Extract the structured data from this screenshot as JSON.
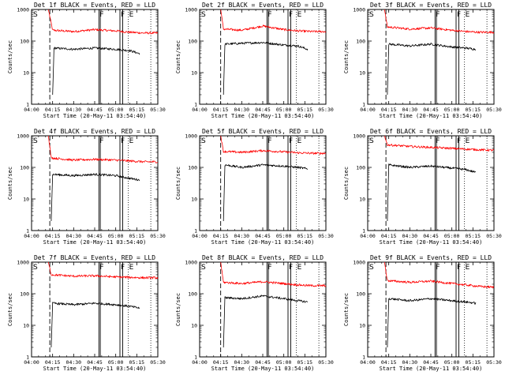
{
  "figure": {
    "xlabel": "Start Time (20-May-11 03:54:40)",
    "ylabel": "Counts/sec",
    "x_ticks": [
      "04:00",
      "04:15",
      "04:30",
      "04:45",
      "05:00",
      "05:15",
      "05:30"
    ],
    "y_ticks": [
      "1",
      "10",
      "100",
      "1000"
    ],
    "colors": {
      "events": "#000000",
      "lld": "#ff0000",
      "axes": "#000000",
      "background": "#ffffff"
    },
    "markers": [
      "S",
      "F",
      "E"
    ]
  },
  "chart_data": [
    {
      "type": "line",
      "title": "Det 1f BLACK = Events, RED = LLD",
      "xlim": [
        "04:00",
        "05:30"
      ],
      "ylim": [
        1,
        1000
      ],
      "y_scale": "log",
      "series": [
        {
          "name": "LLD",
          "color": "#ff0000",
          "x": [
            "04:12",
            "04:15",
            "04:30",
            "04:45",
            "05:00",
            "05:10",
            "05:20",
            "05:30"
          ],
          "y": [
            1000,
            220,
            200,
            230,
            210,
            190,
            180,
            180
          ]
        },
        {
          "name": "Events",
          "color": "#000000",
          "x": [
            "04:15",
            "04:16",
            "04:30",
            "04:45",
            "05:00",
            "05:10",
            "05:17"
          ],
          "y": [
            2,
            60,
            55,
            60,
            55,
            50,
            40
          ]
        }
      ],
      "vlines": {
        "dashed": [
          "04:13"
        ],
        "solid": [
          "04:48",
          "04:49",
          "05:03",
          "05:05"
        ],
        "dotted": [
          "05:09",
          "05:25"
        ]
      }
    },
    {
      "type": "line",
      "title": "Det 2f BLACK = Events, RED = LLD",
      "xlim": [
        "04:00",
        "05:30"
      ],
      "ylim": [
        1,
        1000
      ],
      "y_scale": "log",
      "series": [
        {
          "name": "LLD",
          "color": "#ff0000",
          "x": [
            "04:15",
            "04:17",
            "04:30",
            "04:45",
            "05:00",
            "05:10",
            "05:20",
            "05:30"
          ],
          "y": [
            1000,
            240,
            220,
            300,
            230,
            210,
            200,
            200
          ]
        },
        {
          "name": "Events",
          "color": "#000000",
          "x": [
            "04:17",
            "04:18",
            "04:30",
            "04:45",
            "05:00",
            "05:10",
            "05:17"
          ],
          "y": [
            2,
            80,
            85,
            90,
            75,
            70,
            55
          ]
        }
      ],
      "vlines": {
        "dashed": [
          "04:15"
        ],
        "solid": [
          "04:48",
          "04:49",
          "05:03",
          "05:05"
        ],
        "dotted": [
          "05:09",
          "05:25"
        ]
      }
    },
    {
      "type": "line",
      "title": "Det 3f BLACK = Events, RED = LLD",
      "xlim": [
        "04:00",
        "05:30"
      ],
      "ylim": [
        1,
        1000
      ],
      "y_scale": "log",
      "series": [
        {
          "name": "LLD",
          "color": "#ff0000",
          "x": [
            "04:12",
            "04:14",
            "04:30",
            "04:45",
            "05:00",
            "05:10",
            "05:20",
            "05:30"
          ],
          "y": [
            1000,
            280,
            240,
            260,
            220,
            200,
            190,
            190
          ]
        },
        {
          "name": "Events",
          "color": "#000000",
          "x": [
            "04:14",
            "04:15",
            "04:30",
            "04:45",
            "05:00",
            "05:10",
            "05:17"
          ],
          "y": [
            2,
            80,
            70,
            80,
            65,
            60,
            55
          ]
        }
      ],
      "vlines": {
        "dashed": [
          "04:13"
        ],
        "solid": [
          "04:48",
          "04:49",
          "05:03",
          "05:05"
        ],
        "dotted": [
          "05:09",
          "05:25"
        ]
      }
    },
    {
      "type": "line",
      "title": "Det 4f BLACK = Events, RED = LLD",
      "xlim": [
        "04:00",
        "05:30"
      ],
      "ylim": [
        1,
        1000
      ],
      "y_scale": "log",
      "series": [
        {
          "name": "LLD",
          "color": "#ff0000",
          "x": [
            "04:12",
            "04:14",
            "04:30",
            "04:45",
            "05:00",
            "05:10",
            "05:20",
            "05:30"
          ],
          "y": [
            1000,
            200,
            170,
            180,
            170,
            160,
            150,
            150
          ]
        },
        {
          "name": "Events",
          "color": "#000000",
          "x": [
            "04:14",
            "04:15",
            "04:30",
            "04:45",
            "05:00",
            "05:10",
            "05:17"
          ],
          "y": [
            2,
            60,
            55,
            60,
            55,
            45,
            40
          ]
        }
      ],
      "vlines": {
        "dashed": [
          "04:13"
        ],
        "solid": [
          "04:48",
          "04:49",
          "05:03",
          "05:05"
        ],
        "dotted": [
          "05:09",
          "05:25"
        ]
      }
    },
    {
      "type": "line",
      "title": "Det 5f BLACK = Events, RED = LLD",
      "xlim": [
        "04:00",
        "05:30"
      ],
      "ylim": [
        1,
        1000
      ],
      "y_scale": "log",
      "series": [
        {
          "name": "LLD",
          "color": "#ff0000",
          "x": [
            "04:15",
            "04:17",
            "04:30",
            "04:45",
            "05:00",
            "05:10",
            "05:20",
            "05:30"
          ],
          "y": [
            1000,
            320,
            300,
            340,
            310,
            290,
            280,
            280
          ]
        },
        {
          "name": "Events",
          "color": "#000000",
          "x": [
            "04:17",
            "04:18",
            "04:30",
            "04:45",
            "05:00",
            "05:10",
            "05:17"
          ],
          "y": [
            2,
            120,
            100,
            120,
            110,
            100,
            90
          ]
        }
      ],
      "vlines": {
        "dashed": [
          "04:15"
        ],
        "solid": [
          "04:48",
          "04:49",
          "05:03",
          "05:05"
        ],
        "dotted": [
          "05:09",
          "05:25"
        ]
      }
    },
    {
      "type": "line",
      "title": "Det 6f BLACK = Events, RED = LLD",
      "xlim": [
        "04:00",
        "05:30"
      ],
      "ylim": [
        1,
        1000
      ],
      "y_scale": "log",
      "series": [
        {
          "name": "LLD",
          "color": "#ff0000",
          "x": [
            "04:12",
            "04:14",
            "04:30",
            "04:45",
            "05:00",
            "05:10",
            "05:20",
            "05:30"
          ],
          "y": [
            1000,
            520,
            460,
            430,
            400,
            380,
            360,
            350
          ]
        },
        {
          "name": "Events",
          "color": "#000000",
          "x": [
            "04:14",
            "04:15",
            "04:30",
            "04:45",
            "05:00",
            "05:10",
            "05:17"
          ],
          "y": [
            2,
            120,
            100,
            110,
            95,
            85,
            70
          ]
        }
      ],
      "vlines": {
        "dashed": [
          "04:13"
        ],
        "solid": [
          "04:48",
          "04:49",
          "05:03",
          "05:05"
        ],
        "dotted": [
          "05:09",
          "05:25"
        ]
      }
    },
    {
      "type": "line",
      "title": "Det 7f BLACK = Events, RED = LLD",
      "xlim": [
        "04:00",
        "05:30"
      ],
      "ylim": [
        1,
        1000
      ],
      "y_scale": "log",
      "series": [
        {
          "name": "LLD",
          "color": "#ff0000",
          "x": [
            "04:12",
            "04:14",
            "04:30",
            "04:45",
            "05:00",
            "05:10",
            "05:20",
            "05:30"
          ],
          "y": [
            1000,
            400,
            360,
            370,
            340,
            330,
            320,
            320
          ]
        },
        {
          "name": "Events",
          "color": "#000000",
          "x": [
            "04:14",
            "04:15",
            "04:30",
            "04:45",
            "05:00",
            "05:10",
            "05:17"
          ],
          "y": [
            2,
            50,
            45,
            50,
            45,
            40,
            35
          ]
        }
      ],
      "vlines": {
        "dashed": [
          "04:13"
        ],
        "solid": [
          "04:48",
          "04:49",
          "05:03",
          "05:05"
        ],
        "dotted": [
          "05:09",
          "05:25"
        ]
      }
    },
    {
      "type": "line",
      "title": "Det 8f BLACK = Events, RED = LLD",
      "xlim": [
        "04:00",
        "05:30"
      ],
      "ylim": [
        1,
        1000
      ],
      "y_scale": "log",
      "series": [
        {
          "name": "LLD",
          "color": "#ff0000",
          "x": [
            "04:15",
            "04:17",
            "04:30",
            "04:45",
            "05:00",
            "05:10",
            "05:20",
            "05:30"
          ],
          "y": [
            1000,
            230,
            210,
            240,
            210,
            190,
            180,
            180
          ]
        },
        {
          "name": "Events",
          "color": "#000000",
          "x": [
            "04:17",
            "04:18",
            "04:30",
            "04:45",
            "05:00",
            "05:10",
            "05:17"
          ],
          "y": [
            2,
            75,
            70,
            85,
            70,
            60,
            55
          ]
        }
      ],
      "vlines": {
        "dashed": [
          "04:15"
        ],
        "solid": [
          "04:48",
          "04:49",
          "05:03",
          "05:05"
        ],
        "dotted": [
          "05:09",
          "05:25"
        ]
      }
    },
    {
      "type": "line",
      "title": "Det 9f BLACK = Events, RED = LLD",
      "xlim": [
        "04:00",
        "05:30"
      ],
      "ylim": [
        1,
        1000
      ],
      "y_scale": "log",
      "series": [
        {
          "name": "LLD",
          "color": "#ff0000",
          "x": [
            "04:12",
            "04:14",
            "04:30",
            "04:45",
            "05:00",
            "05:10",
            "05:20",
            "05:30"
          ],
          "y": [
            1000,
            260,
            230,
            250,
            210,
            190,
            170,
            160
          ]
        },
        {
          "name": "Events",
          "color": "#000000",
          "x": [
            "04:14",
            "04:15",
            "04:30",
            "04:45",
            "05:00",
            "05:10",
            "05:17"
          ],
          "y": [
            2,
            70,
            60,
            70,
            60,
            55,
            50
          ]
        }
      ],
      "vlines": {
        "dashed": [
          "04:13"
        ],
        "solid": [
          "04:48",
          "04:49",
          "05:03",
          "05:05"
        ],
        "dotted": [
          "05:09",
          "05:25"
        ]
      }
    }
  ]
}
